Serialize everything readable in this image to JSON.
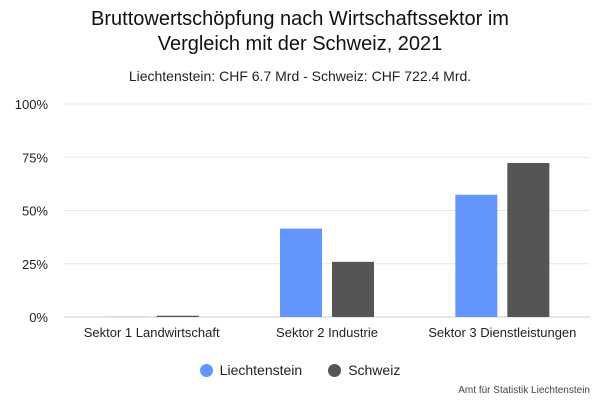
{
  "chart_data": {
    "type": "bar",
    "title": "Bruttowertschöpfung nach Wirtschaftssektor im Vergleich mit der Schweiz, 2021",
    "subtitle": "Liechtenstein: CHF 6.7 Mrd - Schweiz: CHF 722.4 Mrd.",
    "categories": [
      "Sektor 1 Landwirtschaft",
      "Sektor 2 Industrie",
      "Sektor 3 Dienstleistungen"
    ],
    "series": [
      {
        "name": "Liechtenstein",
        "values": [
          0.1,
          41.5,
          57.4
        ],
        "color": "#6495fc"
      },
      {
        "name": "Schweiz",
        "values": [
          0.6,
          25.9,
          72.3
        ],
        "color": "#555556"
      }
    ],
    "ylim": [
      0,
      100
    ],
    "yticks": [
      "0%",
      "25%",
      "50%",
      "75%",
      "100%"
    ],
    "ytick_values": [
      0,
      25,
      50,
      75,
      100
    ],
    "grid": true,
    "legend_position": "bottom",
    "credit": "Amt für Statistik Liechtenstein"
  }
}
